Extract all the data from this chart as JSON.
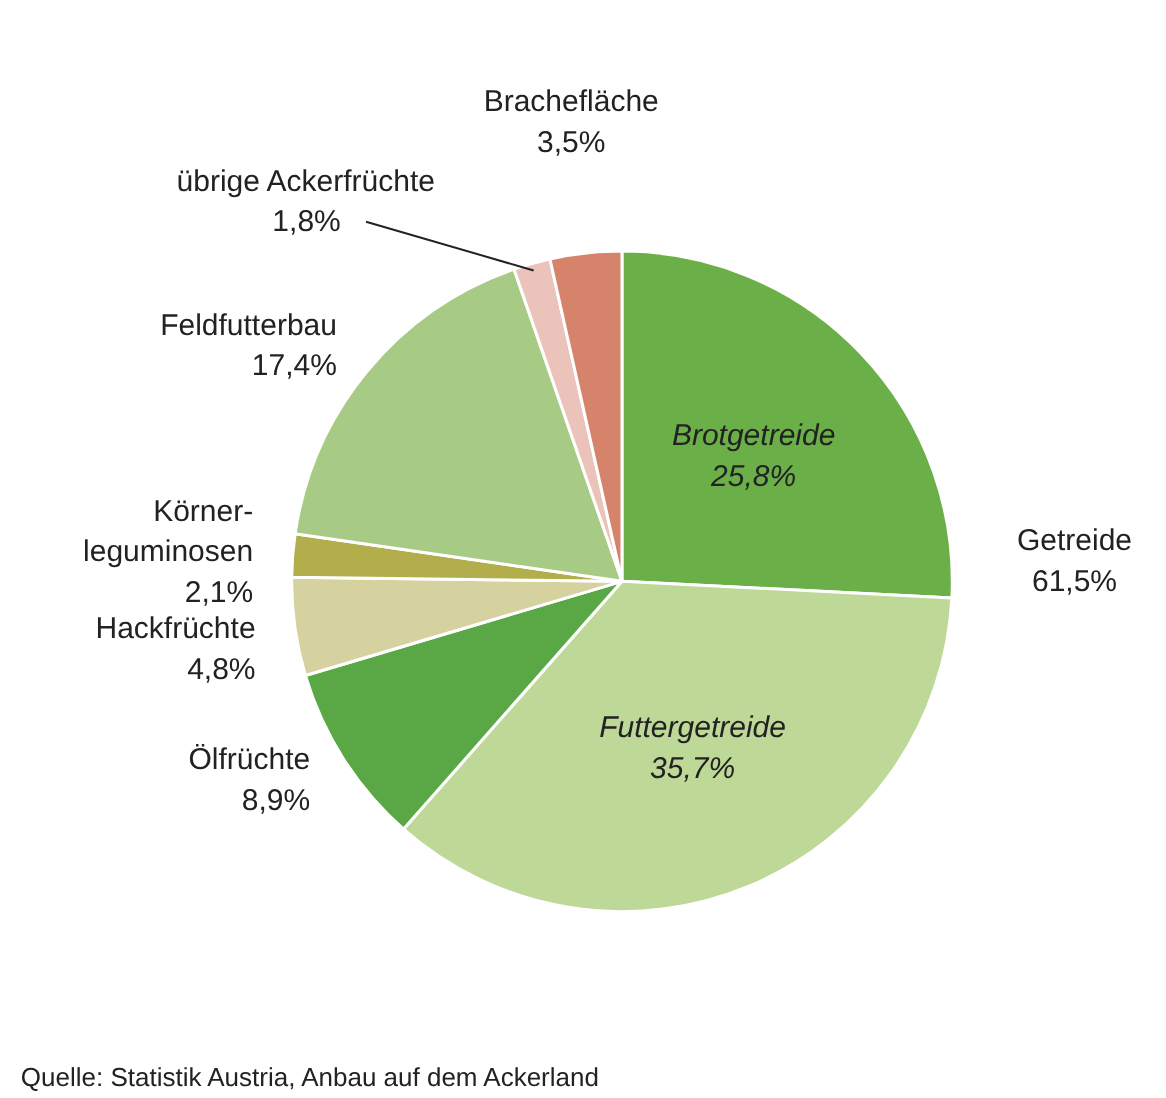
{
  "chart_data": {
    "type": "pie",
    "categories": [
      "Brotgetreide",
      "Futtergetreide",
      "Ölfrüchte",
      "Hackfrüchte",
      "Körner-\nleguminosen",
      "Feldfutterbau",
      "übrige Ackerfrüchte",
      "Brachefläche"
    ],
    "values": [
      25.8,
      35.7,
      8.9,
      4.8,
      2.1,
      17.4,
      1.8,
      3.5
    ],
    "value_labels": [
      "25,8%",
      "35,7%",
      "8,9%",
      "4,8%",
      "2,1%",
      "17,4%",
      "1,8%",
      "3,5%"
    ],
    "colors": [
      "#6aaf48",
      "#bed898",
      "#5aa845",
      "#d5d2a0",
      "#b3ae4c",
      "#a7cb85",
      "#ebc3ba",
      "#d5846b"
    ],
    "annotations": [
      "Getreide\n61,5%",
      "Quelle: Statistik Austria, Anbau auf dem Ackerland"
    ]
  }
}
